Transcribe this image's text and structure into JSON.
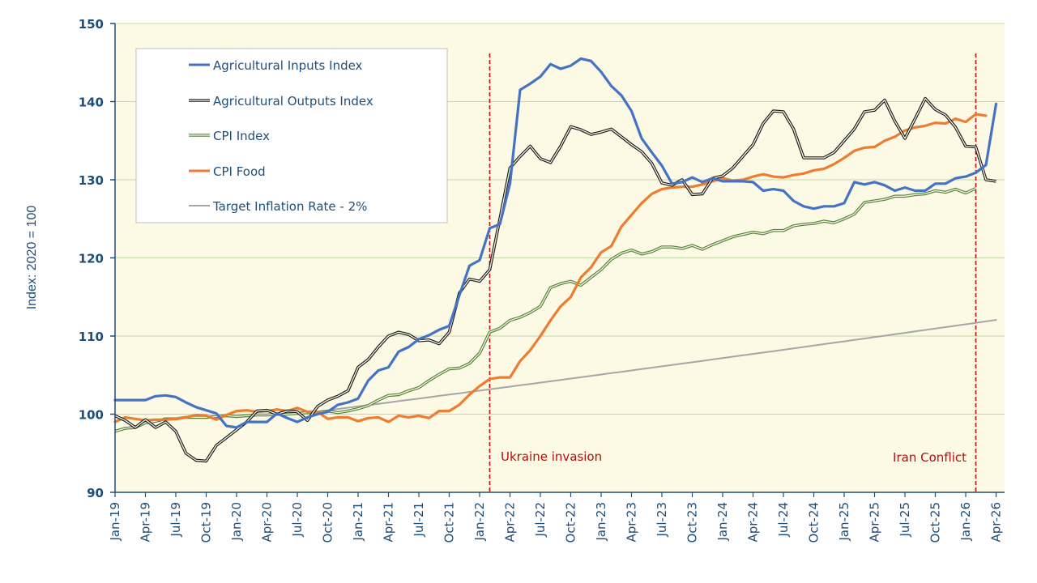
{
  "chart_data": {
    "type": "line",
    "title": "",
    "xlabel": "",
    "ylabel": "Index: 2020 = 100",
    "ylim": [
      90,
      150
    ],
    "yticks": [
      "90",
      "100",
      "110",
      "120",
      "130",
      "140",
      "150"
    ],
    "grid": true,
    "legend_position": "top-left",
    "x_start": "Jan-19",
    "x_tick_labels": [
      "Jan-19",
      "Apr-19",
      "Jul-19",
      "Oct-19",
      "Jan-20",
      "Apr-20",
      "Jul-20",
      "Oct-20",
      "Jan-21",
      "Apr-21",
      "Jul-21",
      "Oct-21",
      "Jan-22",
      "Apr-22",
      "Jul-22",
      "Oct-22",
      "Jan-23",
      "Apr-23",
      "Jul-23",
      "Oct-23",
      "Jan-24",
      "Apr-24",
      "Jul-24",
      "Oct-24",
      "Jan-25",
      "Apr-25",
      "Jul-25",
      "Oct-25",
      "Jan-26",
      "Apr-26"
    ],
    "series": [
      {
        "name": "Agricultural Inputs Index",
        "color": "#4472c4",
        "style": "solid",
        "values": [
          101.8,
          101.8,
          101.8,
          101.8,
          102.3,
          102.4,
          102.2,
          101.5,
          100.9,
          100.5,
          100.1,
          98.5,
          98.3,
          99.0,
          99.0,
          99.0,
          100.1,
          99.5,
          99.0,
          99.6,
          100.0,
          100.3,
          101.2,
          101.5,
          102.0,
          104.3,
          105.6,
          106.0,
          108.0,
          108.6,
          109.6,
          110.1,
          110.8,
          111.3,
          115.2,
          119.0,
          119.7,
          123.8,
          124.3,
          129.5,
          141.5,
          142.3,
          143.2,
          144.8,
          144.2,
          144.6,
          145.5,
          145.2,
          143.8,
          142.0,
          140.8,
          138.8,
          135.3,
          133.5,
          131.8,
          129.5,
          129.7,
          130.3,
          129.7,
          130.2,
          129.8,
          129.8,
          129.8,
          129.7,
          128.6,
          128.8,
          128.6,
          127.3,
          126.6,
          126.3,
          126.6,
          126.6,
          127.0,
          129.7,
          129.4,
          129.7,
          129.3,
          128.6,
          129.0,
          128.6,
          128.6,
          129.5,
          129.5,
          130.2,
          130.4,
          130.9,
          131.9,
          139.7
        ]
      },
      {
        "name": "Agricultural Outputs Index",
        "color": "#1a1a1a",
        "style": "double",
        "values": [
          99.8,
          99.2,
          98.3,
          99.3,
          98.3,
          99.0,
          97.8,
          95.0,
          94.1,
          94.0,
          96.0,
          97.0,
          98.0,
          99.0,
          100.4,
          100.5,
          100.0,
          100.4,
          100.3,
          99.2,
          101.0,
          101.8,
          102.3,
          103.0,
          106.0,
          107.0,
          108.6,
          110.0,
          110.5,
          110.2,
          109.4,
          109.5,
          109.0,
          110.5,
          115.5,
          117.3,
          117.0,
          118.5,
          125.0,
          131.5,
          133.0,
          134.3,
          132.7,
          132.2,
          134.3,
          136.8,
          136.4,
          135.8,
          136.1,
          136.5,
          135.5,
          134.5,
          133.6,
          132.1,
          129.6,
          129.3,
          130.0,
          128.1,
          128.2,
          130.2,
          130.5,
          131.5,
          133.0,
          134.5,
          137.2,
          138.8,
          138.7,
          136.5,
          132.8,
          132.8,
          132.8,
          133.5,
          135.0,
          136.5,
          138.7,
          138.9,
          140.2,
          137.5,
          135.3,
          137.8,
          140.4,
          139.0,
          138.3,
          136.7,
          134.3,
          134.2,
          130.0,
          129.8
        ]
      },
      {
        "name": "CPI Index",
        "color": "#548235",
        "style": "double",
        "values": [
          97.8,
          98.2,
          98.3,
          98.9,
          99.1,
          99.4,
          99.4,
          99.6,
          99.6,
          99.6,
          99.7,
          99.8,
          99.7,
          99.8,
          99.9,
          99.9,
          100.0,
          100.0,
          100.1,
          100.2,
          100.2,
          100.4,
          100.2,
          100.4,
          100.7,
          101.1,
          101.8,
          102.4,
          102.5,
          103.0,
          103.4,
          104.3,
          105.1,
          105.8,
          105.9,
          106.5,
          107.8,
          110.5,
          111.0,
          112.0,
          112.4,
          113.0,
          113.8,
          116.2,
          116.7,
          117.0,
          116.5,
          117.5,
          118.5,
          119.8,
          120.6,
          121.0,
          120.5,
          120.8,
          121.4,
          121.4,
          121.2,
          121.6,
          121.1,
          121.7,
          122.2,
          122.7,
          123.0,
          123.3,
          123.1,
          123.5,
          123.5,
          124.1,
          124.3,
          124.4,
          124.7,
          124.5,
          125.0,
          125.6,
          127.1,
          127.3,
          127.5,
          127.9,
          127.9,
          128.1,
          128.2,
          128.6,
          128.4,
          128.8,
          128.3,
          128.9
        ]
      },
      {
        "name": "CPI Food",
        "color": "#ed7d31",
        "style": "solid",
        "values": [
          99.0,
          99.6,
          99.4,
          99.2,
          99.3,
          99.3,
          99.4,
          99.6,
          99.9,
          99.8,
          99.3,
          99.9,
          100.4,
          100.5,
          100.3,
          100.4,
          100.6,
          100.4,
          100.8,
          100.3,
          100.3,
          99.4,
          99.6,
          99.6,
          99.1,
          99.5,
          99.6,
          99.0,
          99.8,
          99.6,
          99.8,
          99.5,
          100.4,
          100.4,
          101.2,
          102.5,
          103.6,
          104.5,
          104.7,
          104.7,
          106.8,
          108.2,
          110.0,
          112.0,
          113.8,
          115.0,
          117.5,
          118.8,
          120.7,
          121.5,
          124.0,
          125.5,
          127.0,
          128.2,
          128.8,
          129.0,
          129.1,
          129.1,
          129.4,
          129.8,
          130.2,
          129.9,
          130.0,
          130.4,
          130.7,
          130.4,
          130.3,
          130.6,
          130.8,
          131.2,
          131.4,
          132.0,
          132.8,
          133.7,
          134.1,
          134.2,
          135.0,
          135.5,
          136.3,
          136.7,
          136.9,
          137.3,
          137.2,
          137.8,
          137.4,
          138.4,
          138.2
        ]
      },
      {
        "name": "Target Inflation Rate - 2%",
        "color": "#a6a6a6",
        "style": "solid",
        "start_index": 18,
        "start_value": 100.0,
        "annual_rate": 0.02,
        "end_index": 87
      }
    ],
    "annotations": [
      {
        "label": "Ukraine invasion",
        "x": "Feb-22",
        "style": "dashed",
        "color": "#b01010",
        "label_side": "right"
      },
      {
        "label": "Iran Conflict",
        "x": "Feb-26",
        "style": "dashed",
        "color": "#b01010",
        "label_side": "left"
      }
    ],
    "colors": {
      "plot_background": "#fcf9e4",
      "gridline": "#c3d6a8",
      "axis": "#1f4e79",
      "legend_border": "#bfbfbf"
    }
  }
}
